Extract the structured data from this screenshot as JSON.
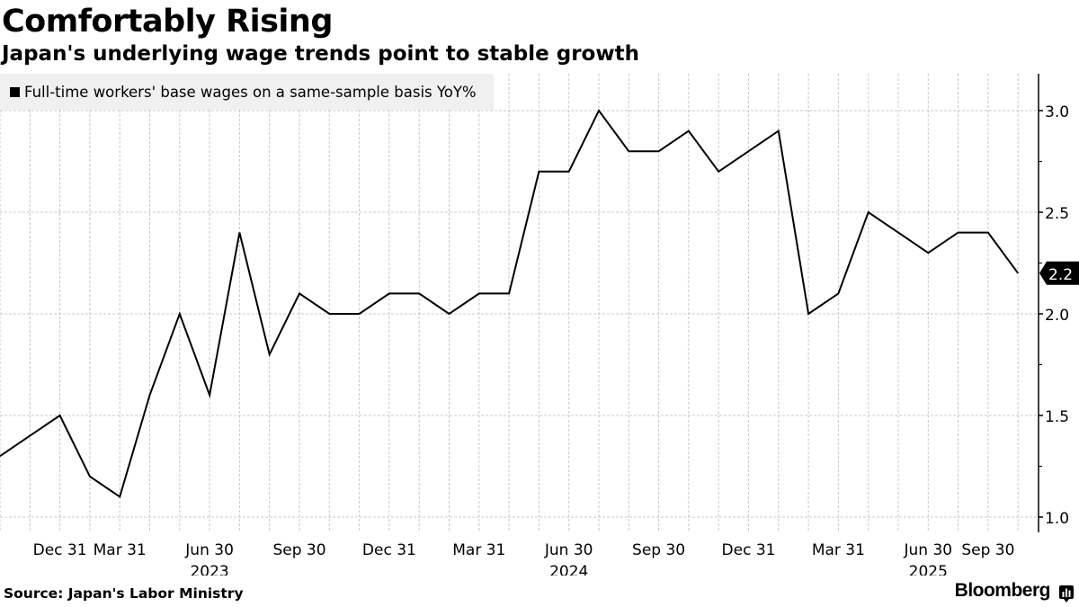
{
  "header": {
    "title": "Comfortably Rising",
    "subtitle": "Japan's underlying wage trends point to stable growth"
  },
  "footer": {
    "source": "Source: Japan's Labor Ministry",
    "brand": "Bloomberg",
    "brand_icon": "bloomberg-chart-icon"
  },
  "colors": {
    "line": "#000000",
    "grid": "#c8c8c8",
    "legend_bg": "#f0f0f0",
    "last_value_badge": "#000000"
  },
  "chart_data": {
    "type": "line",
    "title": "Comfortably Rising",
    "subtitle": "Japan's underlying wage trends point to stable growth",
    "xlabel": "",
    "ylabel": "",
    "ylim": [
      0.95,
      3.2
    ],
    "yticks": [
      1.0,
      1.5,
      2.0,
      2.5,
      3.0
    ],
    "ytick_labels": [
      "1.0",
      "1.5",
      "2.0",
      "2.5",
      "3.0"
    ],
    "y_axis_side": "right",
    "grid": true,
    "legend_position": "top-left",
    "x_tick_labels": [
      {
        "index": 2,
        "label": "Dec 31",
        "year": ""
      },
      {
        "index": 4,
        "label": "Mar 31",
        "year": ""
      },
      {
        "index": 7,
        "label": "Jun 30",
        "year": "2023"
      },
      {
        "index": 10,
        "label": "Sep 30",
        "year": ""
      },
      {
        "index": 13,
        "label": "Dec 31",
        "year": ""
      },
      {
        "index": 16,
        "label": "Mar 31",
        "year": ""
      },
      {
        "index": 19,
        "label": "Jun 30",
        "year": "2024"
      },
      {
        "index": 22,
        "label": "Sep 30",
        "year": ""
      },
      {
        "index": 25,
        "label": "Dec 31",
        "year": ""
      },
      {
        "index": 28,
        "label": "Mar 31",
        "year": ""
      },
      {
        "index": 31,
        "label": "Jun 30",
        "year": "2025"
      },
      {
        "index": 33,
        "label": "Sep 30",
        "year": ""
      }
    ],
    "series": [
      {
        "name": "Full-time workers' base wages on a same-sample basis YoY%",
        "color": "#000000",
        "values": [
          1.3,
          1.4,
          1.5,
          1.2,
          1.1,
          1.6,
          2.0,
          1.6,
          2.4,
          1.8,
          2.1,
          2.0,
          2.0,
          2.1,
          2.1,
          2.0,
          2.1,
          2.1,
          2.7,
          2.7,
          3.0,
          2.8,
          2.8,
          2.9,
          2.7,
          2.8,
          2.9,
          2.0,
          2.1,
          2.5,
          2.4,
          2.3,
          2.4,
          2.4,
          2.2
        ],
        "last_value_label": "2.2"
      }
    ]
  }
}
